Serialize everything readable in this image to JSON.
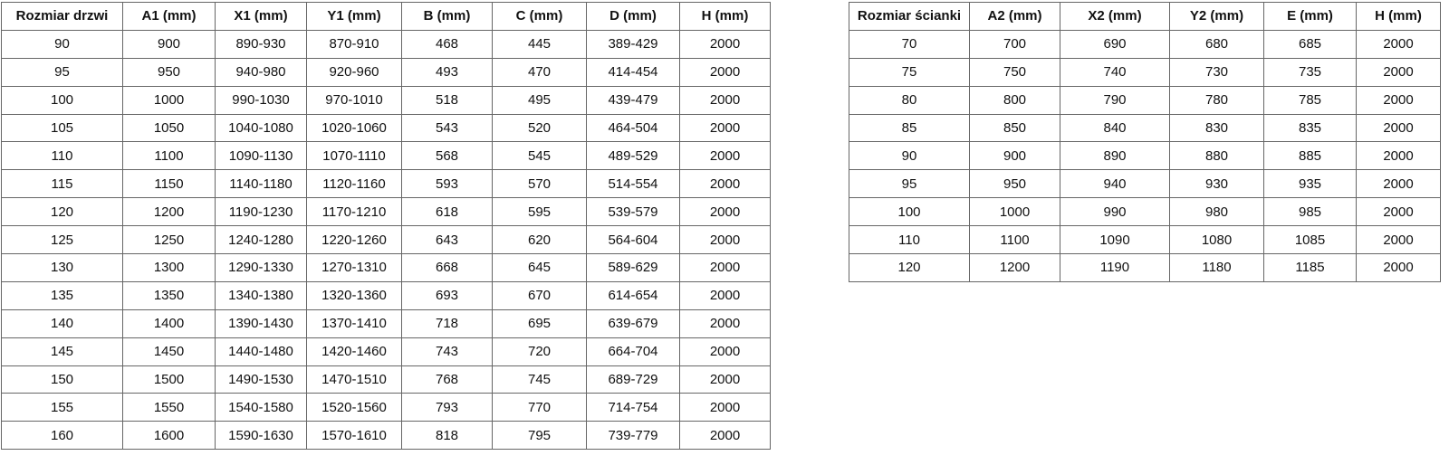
{
  "page": {
    "background_color": "#ffffff",
    "text_color": "#111111",
    "border_color": "#666666"
  },
  "tables": [
    {
      "title": "door-dimensions",
      "headers": [
        "Rozmiar drzwi",
        "A1 (mm)",
        "X1 (mm)",
        "Y1 (mm)",
        "B (mm)",
        "C (mm)",
        "D (mm)",
        "H (mm)"
      ],
      "rows": [
        [
          "90",
          "900",
          "890-930",
          "870-910",
          "468",
          "445",
          "389-429",
          "2000"
        ],
        [
          "95",
          "950",
          "940-980",
          "920-960",
          "493",
          "470",
          "414-454",
          "2000"
        ],
        [
          "100",
          "1000",
          "990-1030",
          "970-1010",
          "518",
          "495",
          "439-479",
          "2000"
        ],
        [
          "105",
          "1050",
          "1040-1080",
          "1020-1060",
          "543",
          "520",
          "464-504",
          "2000"
        ],
        [
          "110",
          "1100",
          "1090-1130",
          "1070-1110",
          "568",
          "545",
          "489-529",
          "2000"
        ],
        [
          "115",
          "1150",
          "1140-1180",
          "1120-1160",
          "593",
          "570",
          "514-554",
          "2000"
        ],
        [
          "120",
          "1200",
          "1190-1230",
          "1170-1210",
          "618",
          "595",
          "539-579",
          "2000"
        ],
        [
          "125",
          "1250",
          "1240-1280",
          "1220-1260",
          "643",
          "620",
          "564-604",
          "2000"
        ],
        [
          "130",
          "1300",
          "1290-1330",
          "1270-1310",
          "668",
          "645",
          "589-629",
          "2000"
        ],
        [
          "135",
          "1350",
          "1340-1380",
          "1320-1360",
          "693",
          "670",
          "614-654",
          "2000"
        ],
        [
          "140",
          "1400",
          "1390-1430",
          "1370-1410",
          "718",
          "695",
          "639-679",
          "2000"
        ],
        [
          "145",
          "1450",
          "1440-1480",
          "1420-1460",
          "743",
          "720",
          "664-704",
          "2000"
        ],
        [
          "150",
          "1500",
          "1490-1530",
          "1470-1510",
          "768",
          "745",
          "689-729",
          "2000"
        ],
        [
          "155",
          "1550",
          "1540-1580",
          "1520-1560",
          "793",
          "770",
          "714-754",
          "2000"
        ],
        [
          "160",
          "1600",
          "1590-1630",
          "1570-1610",
          "818",
          "795",
          "739-779",
          "2000"
        ]
      ]
    },
    {
      "title": "side-panel-dimensions",
      "headers": [
        "Rozmiar ścianki",
        "A2 (mm)",
        "X2 (mm)",
        "Y2 (mm)",
        "E (mm)",
        "H (mm)"
      ],
      "rows": [
        [
          "70",
          "700",
          "690",
          "680",
          "685",
          "2000"
        ],
        [
          "75",
          "750",
          "740",
          "730",
          "735",
          "2000"
        ],
        [
          "80",
          "800",
          "790",
          "780",
          "785",
          "2000"
        ],
        [
          "85",
          "850",
          "840",
          "830",
          "835",
          "2000"
        ],
        [
          "90",
          "900",
          "890",
          "880",
          "885",
          "2000"
        ],
        [
          "95",
          "950",
          "940",
          "930",
          "935",
          "2000"
        ],
        [
          "100",
          "1000",
          "990",
          "980",
          "985",
          "2000"
        ],
        [
          "110",
          "1100",
          "1090",
          "1080",
          "1085",
          "2000"
        ],
        [
          "120",
          "1200",
          "1190",
          "1180",
          "1185",
          "2000"
        ]
      ]
    }
  ]
}
